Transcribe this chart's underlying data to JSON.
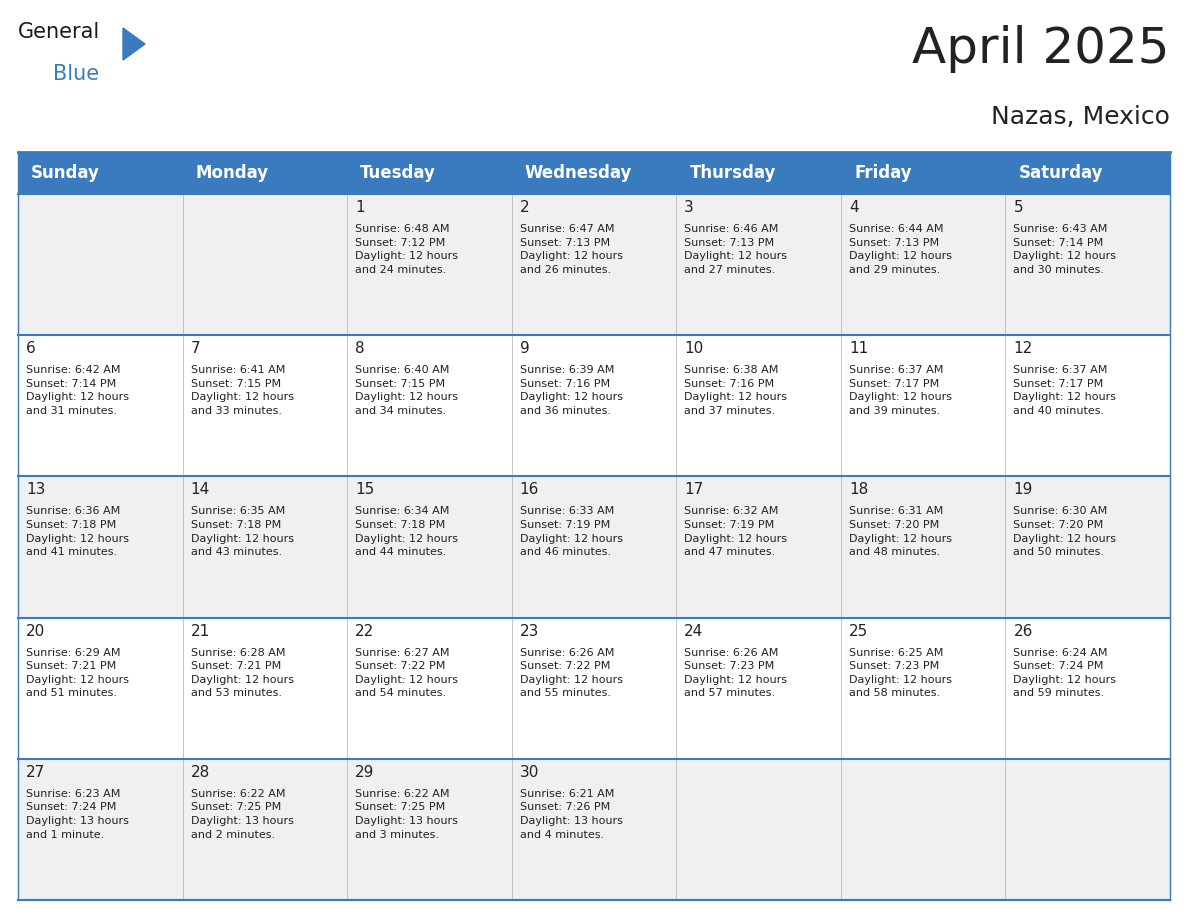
{
  "title": "April 2025",
  "subtitle": "Nazas, Mexico",
  "header_color": "#3a7abf",
  "header_text_color": "#ffffff",
  "days_of_week": [
    "Sunday",
    "Monday",
    "Tuesday",
    "Wednesday",
    "Thursday",
    "Friday",
    "Saturday"
  ],
  "weeks": [
    [
      {
        "day": null,
        "info": null
      },
      {
        "day": null,
        "info": null
      },
      {
        "day": 1,
        "info": "Sunrise: 6:48 AM\nSunset: 7:12 PM\nDaylight: 12 hours\nand 24 minutes."
      },
      {
        "day": 2,
        "info": "Sunrise: 6:47 AM\nSunset: 7:13 PM\nDaylight: 12 hours\nand 26 minutes."
      },
      {
        "day": 3,
        "info": "Sunrise: 6:46 AM\nSunset: 7:13 PM\nDaylight: 12 hours\nand 27 minutes."
      },
      {
        "day": 4,
        "info": "Sunrise: 6:44 AM\nSunset: 7:13 PM\nDaylight: 12 hours\nand 29 minutes."
      },
      {
        "day": 5,
        "info": "Sunrise: 6:43 AM\nSunset: 7:14 PM\nDaylight: 12 hours\nand 30 minutes."
      }
    ],
    [
      {
        "day": 6,
        "info": "Sunrise: 6:42 AM\nSunset: 7:14 PM\nDaylight: 12 hours\nand 31 minutes."
      },
      {
        "day": 7,
        "info": "Sunrise: 6:41 AM\nSunset: 7:15 PM\nDaylight: 12 hours\nand 33 minutes."
      },
      {
        "day": 8,
        "info": "Sunrise: 6:40 AM\nSunset: 7:15 PM\nDaylight: 12 hours\nand 34 minutes."
      },
      {
        "day": 9,
        "info": "Sunrise: 6:39 AM\nSunset: 7:16 PM\nDaylight: 12 hours\nand 36 minutes."
      },
      {
        "day": 10,
        "info": "Sunrise: 6:38 AM\nSunset: 7:16 PM\nDaylight: 12 hours\nand 37 minutes."
      },
      {
        "day": 11,
        "info": "Sunrise: 6:37 AM\nSunset: 7:17 PM\nDaylight: 12 hours\nand 39 minutes."
      },
      {
        "day": 12,
        "info": "Sunrise: 6:37 AM\nSunset: 7:17 PM\nDaylight: 12 hours\nand 40 minutes."
      }
    ],
    [
      {
        "day": 13,
        "info": "Sunrise: 6:36 AM\nSunset: 7:18 PM\nDaylight: 12 hours\nand 41 minutes."
      },
      {
        "day": 14,
        "info": "Sunrise: 6:35 AM\nSunset: 7:18 PM\nDaylight: 12 hours\nand 43 minutes."
      },
      {
        "day": 15,
        "info": "Sunrise: 6:34 AM\nSunset: 7:18 PM\nDaylight: 12 hours\nand 44 minutes."
      },
      {
        "day": 16,
        "info": "Sunrise: 6:33 AM\nSunset: 7:19 PM\nDaylight: 12 hours\nand 46 minutes."
      },
      {
        "day": 17,
        "info": "Sunrise: 6:32 AM\nSunset: 7:19 PM\nDaylight: 12 hours\nand 47 minutes."
      },
      {
        "day": 18,
        "info": "Sunrise: 6:31 AM\nSunset: 7:20 PM\nDaylight: 12 hours\nand 48 minutes."
      },
      {
        "day": 19,
        "info": "Sunrise: 6:30 AM\nSunset: 7:20 PM\nDaylight: 12 hours\nand 50 minutes."
      }
    ],
    [
      {
        "day": 20,
        "info": "Sunrise: 6:29 AM\nSunset: 7:21 PM\nDaylight: 12 hours\nand 51 minutes."
      },
      {
        "day": 21,
        "info": "Sunrise: 6:28 AM\nSunset: 7:21 PM\nDaylight: 12 hours\nand 53 minutes."
      },
      {
        "day": 22,
        "info": "Sunrise: 6:27 AM\nSunset: 7:22 PM\nDaylight: 12 hours\nand 54 minutes."
      },
      {
        "day": 23,
        "info": "Sunrise: 6:26 AM\nSunset: 7:22 PM\nDaylight: 12 hours\nand 55 minutes."
      },
      {
        "day": 24,
        "info": "Sunrise: 6:26 AM\nSunset: 7:23 PM\nDaylight: 12 hours\nand 57 minutes."
      },
      {
        "day": 25,
        "info": "Sunrise: 6:25 AM\nSunset: 7:23 PM\nDaylight: 12 hours\nand 58 minutes."
      },
      {
        "day": 26,
        "info": "Sunrise: 6:24 AM\nSunset: 7:24 PM\nDaylight: 12 hours\nand 59 minutes."
      }
    ],
    [
      {
        "day": 27,
        "info": "Sunrise: 6:23 AM\nSunset: 7:24 PM\nDaylight: 13 hours\nand 1 minute."
      },
      {
        "day": 28,
        "info": "Sunrise: 6:22 AM\nSunset: 7:25 PM\nDaylight: 13 hours\nand 2 minutes."
      },
      {
        "day": 29,
        "info": "Sunrise: 6:22 AM\nSunset: 7:25 PM\nDaylight: 13 hours\nand 3 minutes."
      },
      {
        "day": 30,
        "info": "Sunrise: 6:21 AM\nSunset: 7:26 PM\nDaylight: 13 hours\nand 4 minutes."
      },
      {
        "day": null,
        "info": null
      },
      {
        "day": null,
        "info": null
      },
      {
        "day": null,
        "info": null
      }
    ]
  ],
  "bg_color": "#ffffff",
  "cell_bg_even": "#f0f0f0",
  "cell_bg_odd": "#ffffff",
  "border_color": "#3a7abf",
  "text_color": "#222222",
  "day_num_color": "#222222",
  "info_font_size": 8.0,
  "day_num_font_size": 11,
  "header_font_size": 12,
  "title_fontsize": 36,
  "subtitle_fontsize": 18,
  "logo_general_color": "#1a1a1a",
  "logo_blue_color": "#3a7abf",
  "logo_fontsize": 15
}
